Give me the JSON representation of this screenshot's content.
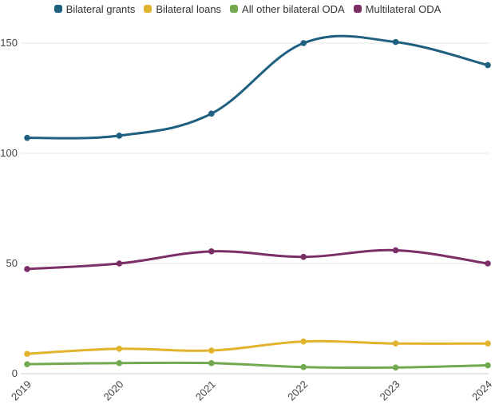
{
  "chart_data": {
    "type": "line",
    "title": "",
    "xlabel": "",
    "ylabel": "",
    "x": [
      "2019",
      "2020",
      "2021",
      "2022",
      "2023",
      "2024"
    ],
    "ylim": [
      0,
      160
    ],
    "yticks": [
      0,
      50,
      100,
      150
    ],
    "grid": true,
    "legend_position": "top",
    "series": [
      {
        "name": "Bilateral grants",
        "color": "#1f5f7f",
        "values": [
          107,
          108,
          118,
          150,
          150.5,
          140
        ]
      },
      {
        "name": "Bilateral loans",
        "color": "#e2b32d",
        "values": [
          9,
          11.3,
          10.5,
          14.6,
          13.7,
          13.7
        ]
      },
      {
        "name": "All other bilateral ODA",
        "color": "#72a84f",
        "values": [
          4.3,
          4.8,
          4.8,
          3,
          2.8,
          3.8
        ]
      },
      {
        "name": "Multilateral ODA",
        "color": "#7b2f66",
        "values": [
          47.5,
          50,
          55.5,
          53,
          56,
          50
        ]
      }
    ]
  }
}
